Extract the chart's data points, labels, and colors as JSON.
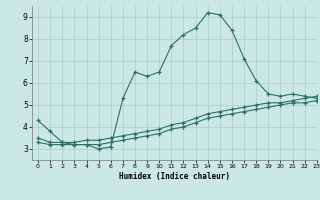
{
  "title": "",
  "xlabel": "Humidex (Indice chaleur)",
  "bg_color": "#cce8e4",
  "line_color": "#2a7068",
  "grid_color": "#aaccc8",
  "xlim": [
    -0.5,
    23
  ],
  "ylim": [
    2.5,
    9.5
  ],
  "xticks": [
    0,
    1,
    2,
    3,
    4,
    5,
    6,
    7,
    8,
    9,
    10,
    11,
    12,
    13,
    14,
    15,
    16,
    17,
    18,
    19,
    20,
    21,
    22,
    23
  ],
  "yticks": [
    3,
    4,
    5,
    6,
    7,
    8,
    9
  ],
  "line1_x": [
    0,
    1,
    2,
    3,
    4,
    5,
    6,
    7,
    8,
    9,
    10,
    11,
    12,
    13,
    14,
    15,
    16,
    17,
    18,
    19,
    20,
    21,
    22,
    23
  ],
  "line1_y": [
    4.3,
    3.8,
    3.3,
    3.2,
    3.2,
    3.0,
    3.1,
    5.3,
    6.5,
    6.3,
    6.5,
    7.7,
    8.2,
    8.5,
    9.2,
    9.1,
    8.4,
    7.1,
    6.1,
    5.5,
    5.4,
    5.5,
    5.4,
    5.3
  ],
  "line2_x": [
    0,
    1,
    2,
    3,
    4,
    5,
    6,
    7,
    8,
    9,
    10,
    11,
    12,
    13,
    14,
    15,
    16,
    17,
    18,
    19,
    20,
    21,
    22,
    23
  ],
  "line2_y": [
    3.5,
    3.3,
    3.3,
    3.3,
    3.4,
    3.4,
    3.5,
    3.6,
    3.7,
    3.8,
    3.9,
    4.1,
    4.2,
    4.4,
    4.6,
    4.7,
    4.8,
    4.9,
    5.0,
    5.1,
    5.1,
    5.2,
    5.3,
    5.4
  ],
  "line3_x": [
    0,
    1,
    2,
    3,
    4,
    5,
    6,
    7,
    8,
    9,
    10,
    11,
    12,
    13,
    14,
    15,
    16,
    17,
    18,
    19,
    20,
    21,
    22,
    23
  ],
  "line3_y": [
    3.3,
    3.2,
    3.2,
    3.2,
    3.2,
    3.2,
    3.3,
    3.4,
    3.5,
    3.6,
    3.7,
    3.9,
    4.0,
    4.2,
    4.4,
    4.5,
    4.6,
    4.7,
    4.8,
    4.9,
    5.0,
    5.1,
    5.1,
    5.2
  ]
}
